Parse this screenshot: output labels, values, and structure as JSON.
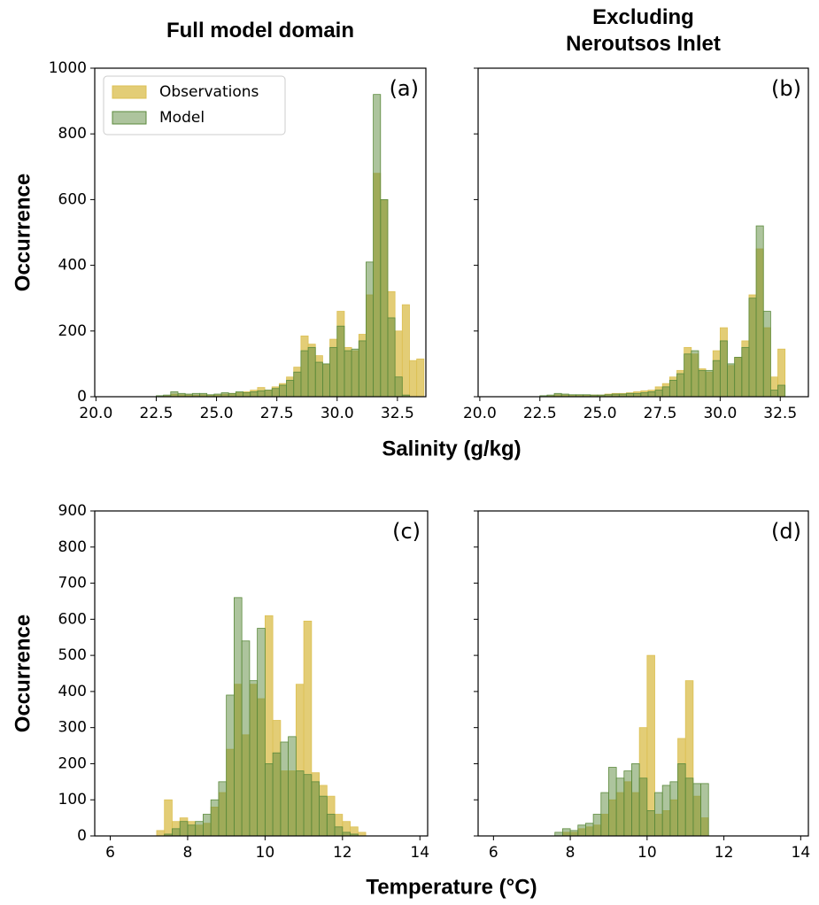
{
  "chart_data": [
    {
      "type": "histogram",
      "title": "Full model domain",
      "annotation": "(a)",
      "ylabel": "Occurrence",
      "xlabel": "Salinity (g/kg)",
      "legend": "upper left",
      "bins": [
        22.5,
        22.8,
        23.1,
        23.4,
        23.7,
        24.0,
        24.3,
        24.6,
        24.9,
        25.2,
        25.5,
        25.8,
        26.1,
        26.4,
        26.7,
        27.0,
        27.3,
        27.6,
        27.9,
        28.2,
        28.5,
        28.8,
        29.1,
        29.4,
        29.7,
        30.0,
        30.3,
        30.6,
        30.9,
        31.2,
        31.5,
        31.8,
        32.1,
        32.4,
        32.7,
        33.0,
        33.3,
        33.6
      ],
      "series": [
        {
          "name": "Observations",
          "color": "#dcc054",
          "values": [
            0,
            2,
            8,
            6,
            5,
            5,
            6,
            5,
            5,
            8,
            10,
            12,
            15,
            20,
            28,
            20,
            30,
            40,
            60,
            90,
            185,
            160,
            125,
            100,
            175,
            260,
            150,
            140,
            190,
            310,
            680,
            600,
            320,
            200,
            280,
            110,
            115
          ]
        },
        {
          "name": "Model",
          "color": "#5b8a3c",
          "values": [
            3,
            5,
            15,
            10,
            8,
            10,
            10,
            6,
            8,
            12,
            10,
            15,
            12,
            15,
            18,
            20,
            25,
            35,
            50,
            75,
            140,
            150,
            105,
            100,
            150,
            215,
            140,
            145,
            170,
            410,
            920,
            600,
            240,
            60,
            5,
            0,
            0
          ]
        }
      ],
      "xlim": [
        19.95,
        33.68
      ],
      "xticks": [
        {
          "value": 20,
          "label": "20.0"
        },
        22.5,
        {
          "value": 25,
          "label": "25.0"
        },
        27.5,
        {
          "value": 30,
          "label": "30.0"
        },
        32.5
      ],
      "ylim": [
        0,
        1000
      ],
      "yticks": [
        0,
        200,
        400,
        600,
        800,
        1000
      ],
      "show_ytick_labels": true
    },
    {
      "type": "histogram",
      "title": "Excluding Neroutsos Inlet",
      "annotation": "(b)",
      "bins": [
        22.5,
        22.8,
        23.1,
        23.4,
        23.7,
        24.0,
        24.3,
        24.6,
        24.9,
        25.2,
        25.5,
        25.8,
        26.1,
        26.4,
        26.7,
        27.0,
        27.3,
        27.6,
        27.9,
        28.2,
        28.5,
        28.8,
        29.1,
        29.4,
        29.7,
        30.0,
        30.3,
        30.6,
        30.9,
        31.2,
        31.5,
        31.8,
        32.1,
        32.4,
        32.7,
        33.0,
        33.3,
        33.6
      ],
      "series": [
        {
          "color": "#dcc054",
          "values": [
            0,
            2,
            6,
            5,
            5,
            5,
            5,
            5,
            5,
            8,
            10,
            10,
            12,
            15,
            18,
            20,
            30,
            40,
            60,
            80,
            150,
            130,
            85,
            75,
            140,
            210,
            95,
            120,
            170,
            310,
            450,
            210,
            60,
            145,
            0,
            0,
            0
          ]
        },
        {
          "color": "#5b8a3c",
          "values": [
            3,
            5,
            10,
            8,
            6,
            6,
            6,
            5,
            5,
            6,
            8,
            8,
            10,
            10,
            12,
            15,
            20,
            30,
            50,
            70,
            130,
            140,
            80,
            80,
            110,
            170,
            100,
            120,
            150,
            300,
            520,
            260,
            20,
            35,
            0,
            0,
            0
          ]
        }
      ],
      "xlim": [
        19.93,
        33.67
      ],
      "xticks": [
        {
          "value": 20,
          "label": "20.0"
        },
        22.5,
        {
          "value": 25,
          "label": "25.0"
        },
        27.5,
        {
          "value": 30,
          "label": "30.0"
        },
        32.5
      ],
      "ylim": [
        0,
        1000
      ],
      "yticks": [
        0,
        200,
        400,
        600,
        800,
        1000
      ],
      "show_ytick_labels": false
    },
    {
      "type": "histogram",
      "annotation": "(c)",
      "ylabel": "Occurrence",
      "xlabel": "Temperature (°C)",
      "bins": [
        6.0,
        6.2,
        6.4,
        6.6,
        6.8,
        7.0,
        7.2,
        7.4,
        7.6,
        7.8,
        8.0,
        8.2,
        8.4,
        8.6,
        8.8,
        9.0,
        9.2,
        9.4,
        9.6,
        9.8,
        10.0,
        10.2,
        10.4,
        10.6,
        10.8,
        11.0,
        11.2,
        11.4,
        11.6,
        11.8,
        12.0,
        12.2,
        12.4,
        12.6,
        12.8,
        13.0,
        13.2,
        13.4,
        13.6,
        13.8,
        14.0
      ],
      "series": [
        {
          "color": "#dcc054",
          "values": [
            0,
            0,
            0,
            0,
            0,
            0,
            15,
            100,
            40,
            50,
            40,
            30,
            35,
            80,
            120,
            240,
            420,
            280,
            420,
            380,
            610,
            320,
            180,
            180,
            420,
            595,
            175,
            140,
            110,
            60,
            40,
            25,
            10,
            0,
            0,
            0,
            0,
            0,
            0,
            0
          ]
        },
        {
          "color": "#5b8a3c",
          "values": [
            0,
            0,
            0,
            0,
            0,
            0,
            0,
            5,
            20,
            40,
            30,
            40,
            60,
            100,
            150,
            390,
            660,
            540,
            430,
            575,
            200,
            230,
            260,
            275,
            180,
            170,
            150,
            110,
            60,
            25,
            10,
            5,
            0,
            0,
            0,
            0,
            0,
            0,
            0,
            0
          ]
        }
      ],
      "xlim": [
        5.6,
        14.2
      ],
      "xticks": [
        6,
        8,
        10,
        12,
        14
      ],
      "ylim": [
        0,
        900
      ],
      "yticks": [
        0,
        100,
        200,
        300,
        400,
        500,
        600,
        700,
        800,
        900
      ],
      "show_ytick_labels": true
    },
    {
      "type": "histogram",
      "annotation": "(d)",
      "bins": [
        6.0,
        6.2,
        6.4,
        6.6,
        6.8,
        7.0,
        7.2,
        7.4,
        7.6,
        7.8,
        8.0,
        8.2,
        8.4,
        8.6,
        8.8,
        9.0,
        9.2,
        9.4,
        9.6,
        9.8,
        10.0,
        10.2,
        10.4,
        10.6,
        10.8,
        11.0,
        11.2,
        11.4,
        11.6,
        11.8,
        12.0,
        12.2,
        12.4,
        12.6,
        12.8,
        13.0,
        13.2,
        13.4,
        13.6,
        13.8,
        14.0
      ],
      "series": [
        {
          "color": "#dcc054",
          "values": [
            0,
            0,
            0,
            0,
            0,
            0,
            0,
            0,
            0,
            10,
            10,
            20,
            25,
            30,
            60,
            100,
            120,
            150,
            120,
            300,
            500,
            60,
            70,
            100,
            270,
            430,
            110,
            50,
            0,
            0,
            0,
            0,
            0,
            0,
            0,
            0,
            0,
            0,
            0,
            0
          ]
        },
        {
          "color": "#5b8a3c",
          "values": [
            0,
            0,
            0,
            0,
            0,
            0,
            0,
            0,
            10,
            20,
            15,
            30,
            35,
            60,
            120,
            190,
            160,
            180,
            200,
            160,
            70,
            120,
            140,
            150,
            200,
            160,
            145,
            145,
            0,
            0,
            0,
            0,
            0,
            0,
            0,
            0,
            0,
            0,
            0,
            0
          ]
        }
      ],
      "xlim": [
        5.6,
        14.2
      ],
      "xticks": [
        6,
        8,
        10,
        12,
        14
      ],
      "ylim": [
        0,
        900
      ],
      "yticks": [
        0,
        100,
        200,
        300,
        400,
        500,
        600,
        700,
        800,
        900
      ],
      "show_ytick_labels": false
    }
  ]
}
